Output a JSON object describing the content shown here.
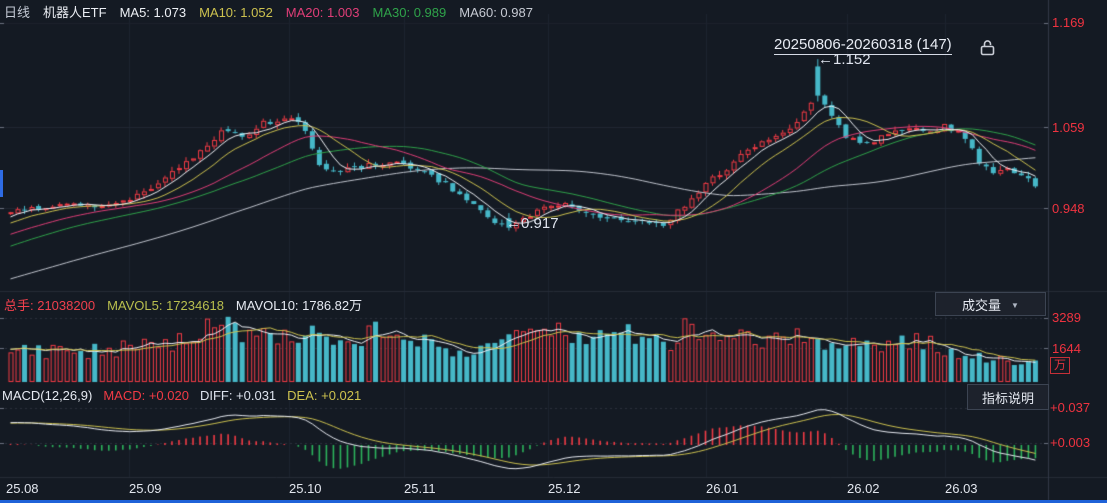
{
  "header": {
    "period": "日线",
    "symbol": "机器人ETF",
    "mas": [
      {
        "text": "MA5: 1.073",
        "color": "#eef1f6"
      },
      {
        "text": "MA10: 1.052",
        "color": "#cdc24f"
      },
      {
        "text": "MA20: 1.003",
        "color": "#e03e78"
      },
      {
        "text": "MA30: 0.989",
        "color": "#2fa34a"
      },
      {
        "text": "MA60: 0.987",
        "color": "#c6cad3"
      }
    ]
  },
  "main_chart": {
    "price_labels": [
      "1.169",
      "1.059",
      "0.948"
    ],
    "range_label": "20250806-20260318 (147)",
    "peak_label": "←1.152",
    "trough_label": "←0.917"
  },
  "volume_panel": {
    "items": [
      {
        "text": "总手: 21038200",
        "color": "#f0404d"
      },
      {
        "text": "MAVOL5: 17234618",
        "color": "#b9bf4e"
      },
      {
        "text": "MAVOL10: 1786.82万",
        "color": "#e6eaf2"
      }
    ],
    "dropdown_label": "成交量",
    "axis": [
      "3289",
      "1644"
    ],
    "unit": "万"
  },
  "macd_panel": {
    "title": "MACD(12,26,9)",
    "items": [
      {
        "text": "MACD: +0.020",
        "color": "#f23b45"
      },
      {
        "text": "DIFF: +0.031",
        "color": "#dde3ee"
      },
      {
        "text": "DEA: +0.021",
        "color": "#cdc24f"
      }
    ],
    "help_button": "指标说明",
    "axis": [
      "+0.037",
      "+0.003"
    ]
  },
  "chart_data": {
    "type": "candlestick",
    "symbol": "机器人ETF",
    "period": "日线",
    "bars_visible": 147,
    "range": "20250806-20260318",
    "price_axis_ticks": [
      1.169,
      1.059,
      0.948
    ],
    "high_annotation": 1.152,
    "low_annotation": 0.917,
    "ma_values": {
      "MA5": 1.073,
      "MA10": 1.052,
      "MA20": 1.003,
      "MA30": 0.989,
      "MA60": 0.987
    },
    "volume": {
      "total": 21038200,
      "mavol5": 17234618,
      "mavol10": "1786.82万",
      "axis_ticks": [
        3289,
        1644
      ],
      "unit": "万"
    },
    "macd": {
      "fast": 12,
      "slow": 26,
      "signal": 9,
      "macd": 0.02,
      "diff": 0.031,
      "dea": 0.021,
      "axis_ticks": [
        0.037,
        0.003
      ]
    },
    "x_ticks": [
      "25.08",
      "25.09",
      "25.10",
      "25.11",
      "25.12",
      "26.01",
      "26.02",
      "26.03"
    ],
    "month_tick_x": [
      6,
      129,
      289,
      404,
      548,
      706,
      847,
      945
    ],
    "history_bars": 60,
    "seed": 1337,
    "price_anchors": [
      [
        -60,
        0.775
      ],
      [
        -45,
        0.8
      ],
      [
        -30,
        0.845
      ],
      [
        -15,
        0.895
      ],
      [
        -5,
        0.925
      ],
      [
        0,
        0.943
      ],
      [
        4,
        0.948
      ],
      [
        8,
        0.953
      ],
      [
        12,
        0.95
      ],
      [
        17,
        0.96
      ],
      [
        22,
        0.988
      ],
      [
        26,
        1.018
      ],
      [
        30,
        1.052
      ],
      [
        33,
        1.046
      ],
      [
        36,
        1.064
      ],
      [
        40,
        1.072
      ],
      [
        42,
        1.056
      ],
      [
        44,
        1.004
      ],
      [
        46,
        0.996
      ],
      [
        49,
        1.004
      ],
      [
        53,
        1.009
      ],
      [
        55,
        1.015
      ],
      [
        58,
        1.0
      ],
      [
        61,
        0.986
      ],
      [
        64,
        0.968
      ],
      [
        67,
        0.944
      ],
      [
        70,
        0.923
      ],
      [
        71,
        0.919
      ],
      [
        73,
        0.932
      ],
      [
        76,
        0.948
      ],
      [
        79,
        0.953
      ],
      [
        82,
        0.941
      ],
      [
        85,
        0.934
      ],
      [
        88,
        0.926
      ],
      [
        90,
        0.931
      ],
      [
        93,
        0.924
      ],
      [
        96,
        0.952
      ],
      [
        99,
        0.982
      ],
      [
        102,
        1.001
      ],
      [
        105,
        1.028
      ],
      [
        108,
        1.041
      ],
      [
        111,
        1.058
      ],
      [
        114,
        1.089
      ],
      [
        115,
        1.103
      ],
      [
        117,
        1.071
      ],
      [
        119,
        1.047
      ],
      [
        122,
        1.036
      ],
      [
        125,
        1.049
      ],
      [
        128,
        1.059
      ],
      [
        130,
        1.051
      ],
      [
        133,
        1.06
      ],
      [
        136,
        1.046
      ],
      [
        138,
        1.012
      ],
      [
        140,
        0.996
      ],
      [
        142,
        1.003
      ],
      [
        144,
        0.99
      ],
      [
        146,
        0.981
      ]
    ],
    "volume_anchors": [
      [
        -60,
        1500
      ],
      [
        -20,
        1600
      ],
      [
        0,
        1700
      ],
      [
        8,
        1450
      ],
      [
        16,
        1700
      ],
      [
        24,
        2100
      ],
      [
        29,
        3300
      ],
      [
        33,
        2100
      ],
      [
        38,
        2400
      ],
      [
        43,
        2500
      ],
      [
        48,
        2000
      ],
      [
        53,
        2600
      ],
      [
        58,
        2200
      ],
      [
        63,
        1400
      ],
      [
        68,
        1600
      ],
      [
        73,
        2300
      ],
      [
        78,
        2900
      ],
      [
        82,
        2200
      ],
      [
        86,
        2500
      ],
      [
        90,
        2200
      ],
      [
        94,
        2000
      ],
      [
        97,
        2900
      ],
      [
        101,
        2300
      ],
      [
        105,
        2100
      ],
      [
        109,
        2400
      ],
      [
        113,
        2200
      ],
      [
        116,
        2100
      ],
      [
        119,
        1900
      ],
      [
        123,
        1700
      ],
      [
        127,
        1900
      ],
      [
        131,
        2100
      ],
      [
        134,
        1500
      ],
      [
        137,
        1300
      ],
      [
        140,
        1200
      ],
      [
        143,
        1000
      ],
      [
        146,
        900
      ]
    ]
  }
}
